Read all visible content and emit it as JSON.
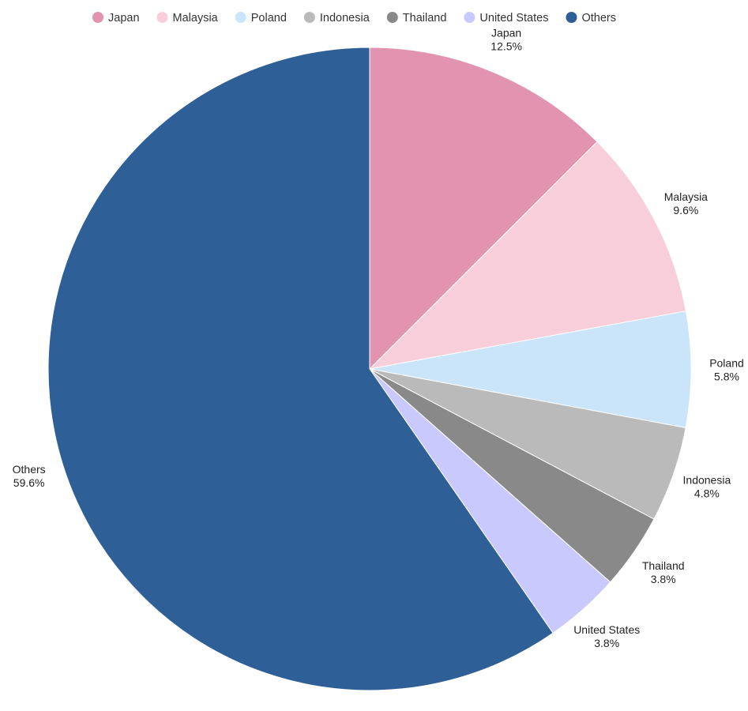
{
  "chart_data": {
    "type": "pie",
    "title": "",
    "legend_position": "top",
    "slices": [
      {
        "label": "Japan",
        "value": 12.5,
        "value_label": "12.5%",
        "color": "#e293af"
      },
      {
        "label": "Malaysia",
        "value": 9.6,
        "value_label": "9.6%",
        "color": "#f7ceda"
      },
      {
        "label": "Poland",
        "value": 5.8,
        "value_label": "5.8%",
        "color": "#cae4f9"
      },
      {
        "label": "Indonesia",
        "value": 4.8,
        "value_label": "4.8%",
        "color": "#bababa"
      },
      {
        "label": "Thailand",
        "value": 3.8,
        "value_label": "3.8%",
        "color": "#898989"
      },
      {
        "label": "United States",
        "value": 3.8,
        "value_label": "3.8%",
        "color": "#c9c9fd"
      },
      {
        "label": "Others",
        "value": 59.6,
        "value_label": "59.6%",
        "color": "#2f5f97"
      }
    ]
  }
}
